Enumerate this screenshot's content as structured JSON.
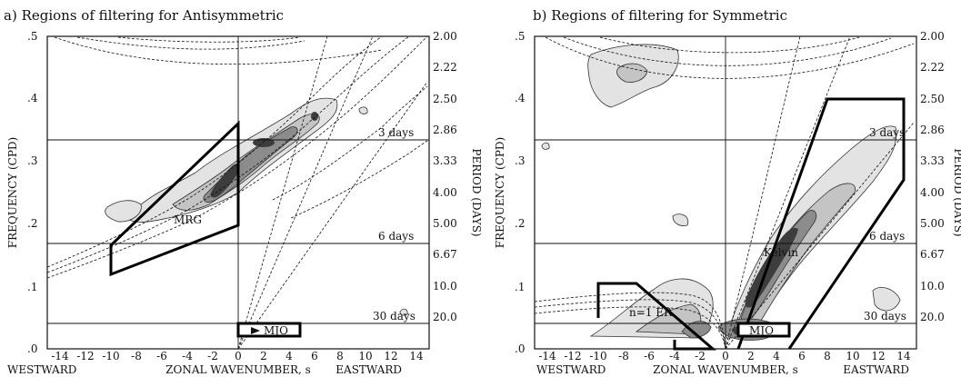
{
  "panels": [
    {
      "title": "a) Regions of filtering for Antisymmetric",
      "ylabel": "FREQUENCY (CPD)",
      "xlabel": "ZONAL WAVENUMBER, s",
      "left_label": "WESTWARD",
      "right_label": "EASTWARD",
      "right_axis_label": "PERIOD (DAYS)",
      "x_ticks": [
        "-14",
        "-12",
        "-10",
        "-8",
        "-6",
        "-4",
        "-2",
        "0",
        "2",
        "4",
        "6",
        "8",
        "10",
        "12",
        "14"
      ],
      "y_ticks": [
        ".0",
        ".1",
        ".2",
        ".3",
        ".4",
        ".5"
      ],
      "period_ticks": [
        "2.00",
        "2.22",
        "2.50",
        "2.86",
        "3.33",
        "4.00",
        "5.00",
        "6.67",
        "10.0",
        "20.0"
      ],
      "ref_lines": [
        {
          "label": "3 days",
          "freq": 0.3333
        },
        {
          "label": "6 days",
          "freq": 0.1667
        },
        {
          "label": "30 days",
          "freq": 0.0333
        }
      ],
      "regions": [
        "MRG",
        "MJO"
      ]
    },
    {
      "title": "b) Regions of filtering for Symmetric",
      "ylabel": "FREQUENCY (CPD)",
      "xlabel": "ZONAL WAVENUMBER, s",
      "left_label": "WESTWARD",
      "right_label": "EASTWARD",
      "right_axis_label": "PERIOD (DAYS)",
      "x_ticks": [
        "-14",
        "-12",
        "-10",
        "-8",
        "-6",
        "-4",
        "-2",
        "0",
        "2",
        "4",
        "6",
        "8",
        "10",
        "12",
        "14"
      ],
      "y_ticks": [
        ".0",
        ".1",
        ".2",
        ".3",
        ".4",
        ".5"
      ],
      "period_ticks": [
        "2.00",
        "2.22",
        "2.50",
        "2.86",
        "3.33",
        "4.00",
        "5.00",
        "6.67",
        "10.0",
        "20.0"
      ],
      "ref_lines": [
        {
          "label": "3 days",
          "freq": 0.3333
        },
        {
          "label": "6 days",
          "freq": 0.1667
        },
        {
          "label": "30 days",
          "freq": 0.0333
        }
      ],
      "regions": [
        "Kelvin",
        "n=1 ER",
        "MJO"
      ]
    }
  ],
  "chart_data": [
    {
      "type": "contour",
      "title": "a) Regions of filtering for Antisymmetric",
      "xlabel": "ZONAL WAVENUMBER, s",
      "ylabel": "FREQUENCY (CPD)",
      "xlim": [
        -15,
        15
      ],
      "ylim": [
        0,
        0.5
      ],
      "period_axis_values": [
        2.0,
        2.22,
        2.5,
        2.86,
        3.33,
        4.0,
        5.0,
        6.67,
        10.0,
        20.0
      ],
      "reference_lines_days": [
        3,
        6,
        30
      ],
      "regions": [
        {
          "name": "MRG",
          "polygon": [
            [
              -10,
              0.12
            ],
            [
              -10,
              0.16
            ],
            [
              0,
              0.36
            ],
            [
              0,
              0.195
            ]
          ]
        },
        {
          "name": "MJO",
          "polygon": [
            [
              0,
              0.0
            ],
            [
              0,
              0.033
            ],
            [
              5,
              0.033
            ],
            [
              5,
              0.0
            ]
          ]
        }
      ]
    },
    {
      "type": "contour",
      "title": "b) Regions of filtering for Symmetric",
      "xlabel": "ZONAL WAVENUMBER, s",
      "ylabel": "FREQUENCY (CPD)",
      "xlim": [
        -15,
        15
      ],
      "ylim": [
        0,
        0.5
      ],
      "period_axis_values": [
        2.0,
        2.22,
        2.5,
        2.86,
        3.33,
        4.0,
        5.0,
        6.67,
        10.0,
        20.0
      ],
      "reference_lines_days": [
        3,
        6,
        30
      ],
      "regions": [
        {
          "name": "Kelvin",
          "polygon": [
            [
              1,
              0.0
            ],
            [
              8,
              0.4
            ],
            [
              14,
              0.4
            ],
            [
              14,
              0.27
            ],
            [
              5,
              0.0
            ]
          ]
        },
        {
          "name": "n=1 ER",
          "polygon": [
            [
              -10,
              0.05
            ],
            [
              -10,
              0.105
            ],
            [
              -7,
              0.105
            ],
            [
              -1,
              0.0
            ],
            [
              -4,
              0.0
            ]
          ]
        },
        {
          "name": "MJO",
          "polygon": [
            [
              1,
              0.0
            ],
            [
              1,
              0.033
            ],
            [
              5,
              0.033
            ],
            [
              5,
              0.0
            ]
          ]
        }
      ]
    }
  ]
}
